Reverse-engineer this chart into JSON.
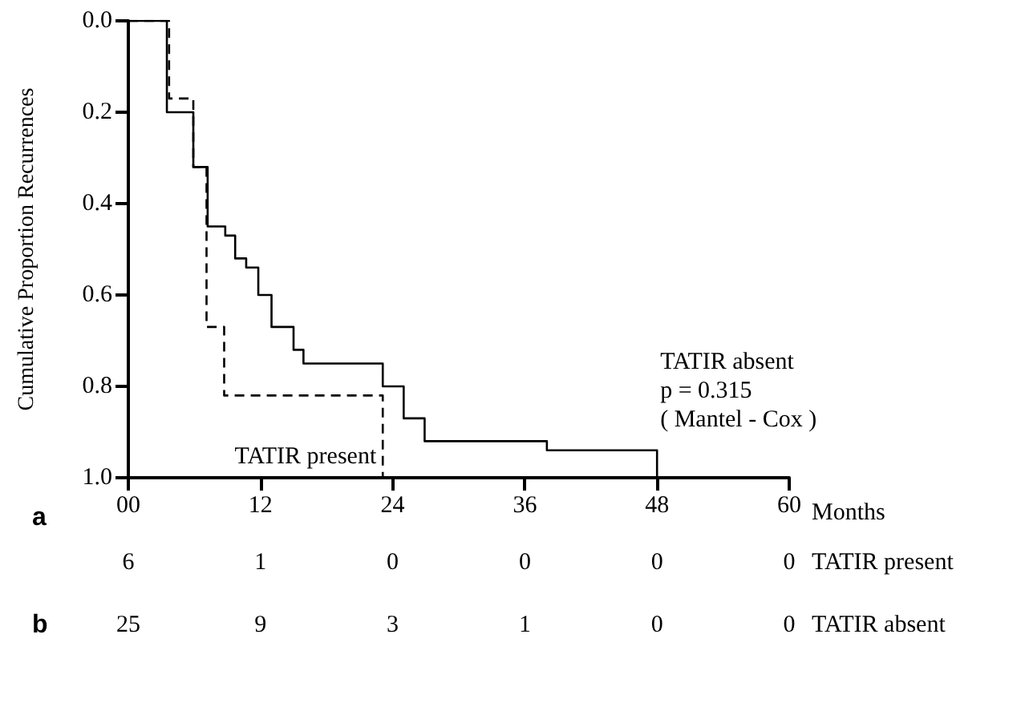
{
  "chart_data": {
    "type": "step",
    "xlabel": "Months",
    "ylabel": "Cumulative Proportion Recurrences",
    "xlim": [
      0,
      60
    ],
    "xticks": [
      {
        "value": 0,
        "label": "00"
      },
      12,
      24,
      36,
      48,
      60
    ],
    "ylim": [
      1.0,
      0.0
    ],
    "yticks": [
      {
        "value": 0,
        "label": "0.0"
      },
      0.2,
      0.4,
      0.6,
      0.8,
      {
        "value": 1,
        "label": "1.0"
      }
    ],
    "grid": false,
    "legend": false,
    "marker": "none",
    "series": [
      {
        "name": "TATIR present",
        "color": "#000000",
        "line_style": "dashed",
        "x": [
          0,
          3.7,
          5.9,
          7.1,
          8.7,
          23.1
        ],
        "values": [
          0,
          0.17,
          0.32,
          0.67,
          0.82,
          1.0
        ]
      },
      {
        "name": "TATIR absent",
        "color": "#000000",
        "line_style": "solid",
        "x": [
          0,
          3.5,
          5.9,
          7.2,
          8.8,
          9.7,
          10.7,
          11.8,
          13,
          15,
          15.9,
          23.1,
          25,
          26.9,
          38,
          48
        ],
        "values": [
          0,
          0.2,
          0.32,
          0.45,
          0.47,
          0.52,
          0.54,
          0.6,
          0.67,
          0.72,
          0.75,
          0.8,
          0.87,
          0.92,
          0.94,
          1.0
        ]
      }
    ],
    "annotations": [
      "p = 0.315",
      "( Mantel - Cox )",
      "a",
      "b",
      "6",
      "1",
      "0",
      "0",
      "0",
      "0",
      "25",
      "9",
      "3",
      "1",
      "0",
      "0"
    ]
  }
}
